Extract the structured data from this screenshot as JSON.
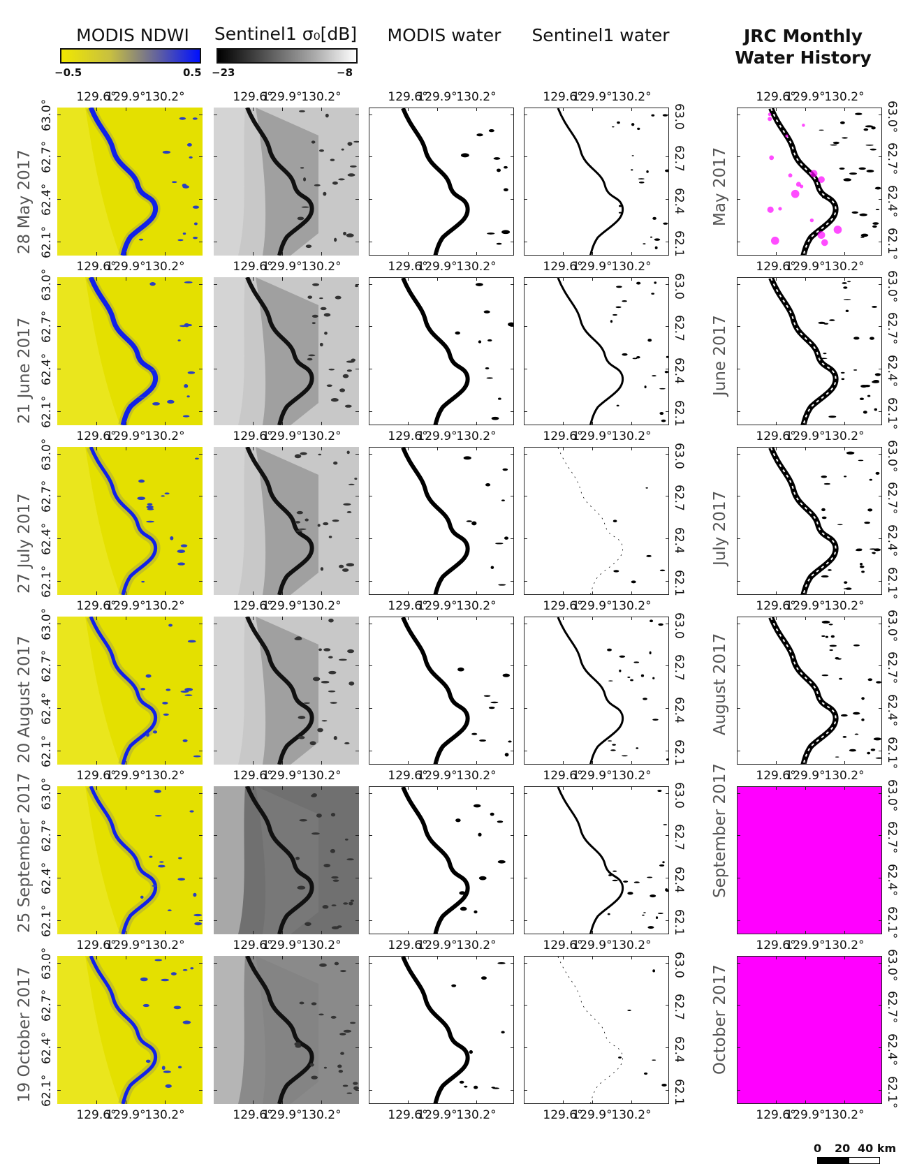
{
  "columns": [
    {
      "title": "MODIS NDWI",
      "colorbar": {
        "min": "−0.5",
        "max": "0.5",
        "colors": [
          "#f0e800",
          "#0010ff"
        ]
      },
      "panel_type": "ndwi"
    },
    {
      "title": "Sentinel1 σ₀[dB]",
      "colorbar": {
        "min": "−23",
        "max": "−8",
        "colors": [
          "#000000",
          "#ffffff"
        ]
      },
      "panel_type": "sar"
    },
    {
      "title": "MODIS water",
      "panel_type": "binary_modis"
    },
    {
      "title": "Sentinel1 water",
      "panel_type": "binary_s1"
    },
    {
      "title_line1": "JRC  Monthly",
      "title_line2": "Water History",
      "panel_type": "jrc"
    }
  ],
  "rows": [
    {
      "date": "28 May 2017",
      "jrc_label": "May 2017",
      "jrc_state": "partial"
    },
    {
      "date": "21 June 2017",
      "jrc_label": "June 2017",
      "jrc_state": "valid"
    },
    {
      "date": "27 July 2017",
      "jrc_label": "July 2017",
      "jrc_state": "valid"
    },
    {
      "date": "20 August 2017",
      "jrc_label": "August 2017",
      "jrc_state": "valid"
    },
    {
      "date": "25 September 2017",
      "jrc_label": "September 2017",
      "jrc_state": "nodata"
    },
    {
      "date": "19 October 2017",
      "jrc_label": "October 2017",
      "jrc_state": "nodata"
    }
  ],
  "axes": {
    "x_ticks": [
      "129.6°",
      "129.9°",
      "130.2°"
    ],
    "x_ticks_plain": [
      "129.6°",
      "129.9°",
      "130.2°"
    ],
    "y_ticks_left": [
      "63.0°",
      "62.7°",
      "62.4°",
      "62.1°"
    ],
    "y_ticks_right": [
      "63.0",
      "62.7",
      "62.4",
      "62.1"
    ],
    "y_ticks_right_deg": [
      "63.0°",
      "62.7°",
      "62.4°",
      "62.1°"
    ]
  },
  "scalebar": {
    "labels": [
      "0",
      "20",
      "40 km"
    ]
  },
  "colors": {
    "nodata": "#ff00ff",
    "water_ndwi": "#1020e8",
    "land_ndwi": "#e4e000",
    "water_binary": "#000000"
  }
}
